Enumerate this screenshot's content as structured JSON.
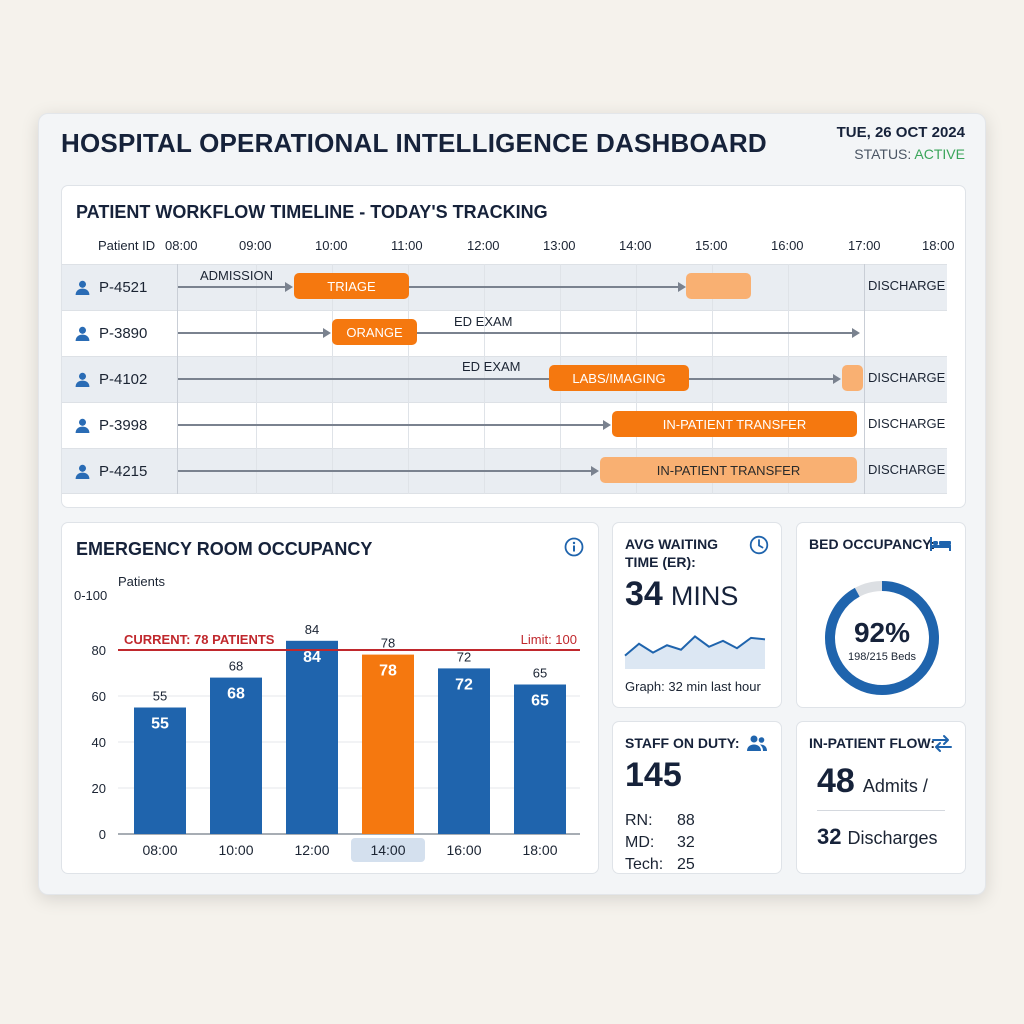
{
  "header": {
    "title": "HOSPITAL OPERATIONAL INTELLIGENCE DASHBOARD",
    "date": "TUE, 26 OCT 2024",
    "status_label": "STATUS:",
    "status_value": "ACTIVE"
  },
  "workflow": {
    "title": "PATIENT WORKFLOW TIMELINE - TODAY'S TRACKING",
    "id_header": "Patient ID",
    "hours": [
      "08:00",
      "09:00",
      "10:00",
      "11:00",
      "12:00",
      "13:00",
      "14:00",
      "15:00",
      "16:00",
      "17:00",
      "18:00"
    ],
    "rows": [
      {
        "id": "P-4521",
        "labels": [
          "ADMISSION",
          "TRIAGE",
          "",
          "DISCHARGE"
        ]
      },
      {
        "id": "P-3890",
        "labels": [
          "ORANGE",
          "ED EXAM"
        ]
      },
      {
        "id": "P-4102",
        "labels": [
          "ED EXAM",
          "LABS/IMAGING",
          "",
          "DISCHARGE"
        ]
      },
      {
        "id": "P-3998",
        "labels": [
          "IN-PATIENT TRANSFER",
          "DISCHARGE"
        ]
      },
      {
        "id": "P-4215",
        "labels": [
          "IN-PATIENT TRANSFER",
          "DISCHARGE"
        ]
      }
    ]
  },
  "er": {
    "title": "EMERGENCY ROOM OCCUPANCY",
    "current_label": "CURRENT: 78 PATIENTS",
    "limit_label": "Limit: 100"
  },
  "chart_data": {
    "type": "bar",
    "title": "EMERGENCY ROOM OCCUPANCY",
    "ylabel": "Patients",
    "yaxis_top_label": "0-100",
    "categories": [
      "08:00",
      "10:00",
      "12:00",
      "14:00",
      "16:00",
      "18:00"
    ],
    "values": [
      55,
      68,
      84,
      78,
      72,
      65
    ],
    "highlight_category": "14:00",
    "reference_value": 80,
    "yticks": [
      0,
      20,
      40,
      60,
      80
    ],
    "ylim": [
      0,
      100
    ],
    "colors": {
      "bar": "#1f64ad",
      "highlight": "#f5780f",
      "reference": "#c0282d"
    }
  },
  "wait": {
    "title_line1": "AVG WAITING",
    "title_line2": "TIME (ER):",
    "value": "34",
    "unit": "MINS",
    "caption": "Graph: 32 min last hour",
    "spark_values": [
      20,
      28,
      22,
      27,
      24,
      33,
      26,
      30,
      25,
      32,
      31
    ]
  },
  "bed": {
    "title": "BED OCCUPANCY:",
    "percent": "92%",
    "fraction_label": "198/215 Beds",
    "fraction": 0.92
  },
  "staff": {
    "title": "STAFF ON DUTY:",
    "total": "145",
    "rows": [
      {
        "role": "RN:",
        "count": "88"
      },
      {
        "role": "MD:",
        "count": "32"
      },
      {
        "role": "Tech:",
        "count": "25"
      }
    ]
  },
  "flow": {
    "title": "IN-PATIENT FLOW:",
    "admits_value": "48",
    "admits_label": "Admits /",
    "discharges_value": "32",
    "discharges_label": "Discharges"
  },
  "colors": {
    "orange": "#f5780f",
    "light_orange": "#f9b072",
    "blue": "#1f64ad",
    "status_green": "#3aa55a"
  }
}
